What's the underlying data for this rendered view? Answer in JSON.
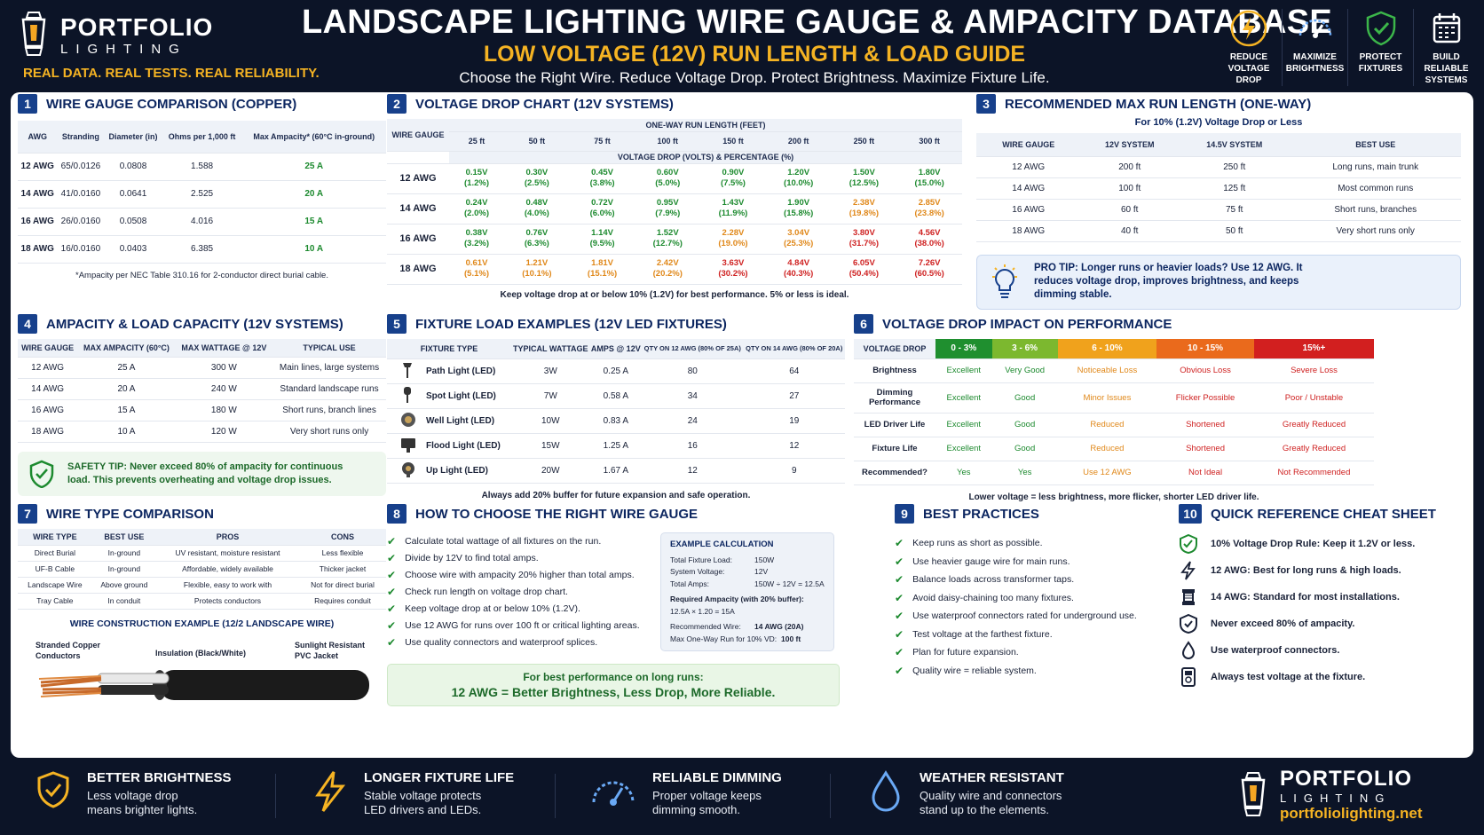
{
  "header": {
    "brand_name": "PORTFOLIO",
    "brand_sub": "LIGHTING",
    "tagline": "REAL DATA. REAL TESTS. REAL RELIABILITY.",
    "title": "LANDSCAPE LIGHTING WIRE GAUGE & AMPACITY DATABASE",
    "subtitle": "LOW VOLTAGE (12V) RUN LENGTH & LOAD GUIDE",
    "tagline2": "Choose the Right Wire. Reduce Voltage Drop. Protect Brightness. Maximize Fixture Life.",
    "icons": [
      {
        "icon": "lightning-icon",
        "l1": "REDUCE",
        "l2": "VOLTAGE DROP"
      },
      {
        "icon": "gauge-icon",
        "l1": "MAXIMIZE",
        "l2": "BRIGHTNESS"
      },
      {
        "icon": "shield-check-icon",
        "l1": "PROTECT",
        "l2": "FIXTURES"
      },
      {
        "icon": "calendar-icon",
        "l1": "BUILD RELIABLE",
        "l2": "SYSTEMS"
      }
    ]
  },
  "s1": {
    "num": "1",
    "title": "WIRE GAUGE COMPARISON (COPPER)",
    "headers": [
      "AWG",
      "Stranding",
      "Diameter (in)",
      "Ohms per 1,000 ft",
      "Max Ampacity* (60°C in-ground)"
    ],
    "rows": [
      [
        "12 AWG",
        "65/0.0126",
        "0.0808",
        "1.588",
        "25 A"
      ],
      [
        "14 AWG",
        "41/0.0160",
        "0.0641",
        "2.525",
        "20 A"
      ],
      [
        "16 AWG",
        "26/0.0160",
        "0.0508",
        "4.016",
        "15 A"
      ],
      [
        "18 AWG",
        "16/0.0160",
        "0.0403",
        "6.385",
        "10 A"
      ]
    ],
    "note": "*Ampacity per NEC Table 310.16 for 2-conductor direct burial cable."
  },
  "s2": {
    "num": "2",
    "title": "VOLTAGE DROP CHART (12V SYSTEMS)",
    "wire_gauge": "WIRE GAUGE",
    "run_label": "ONE-WAY RUN LENGTH (FEET)",
    "drop_label": "VOLTAGE DROP (VOLTS) & PERCENTAGE (%)",
    "lengths": [
      "25 ft",
      "50 ft",
      "75 ft",
      "100 ft",
      "150 ft",
      "200 ft",
      "250 ft",
      "300 ft"
    ],
    "rows": [
      {
        "g": "12 AWG",
        "cells": [
          [
            "0.15V",
            "(1.2%)",
            "g"
          ],
          [
            "0.30V",
            "(2.5%)",
            "g"
          ],
          [
            "0.45V",
            "(3.8%)",
            "g"
          ],
          [
            "0.60V",
            "(5.0%)",
            "g"
          ],
          [
            "0.90V",
            "(7.5%)",
            "g"
          ],
          [
            "1.20V",
            "(10.0%)",
            "g"
          ],
          [
            "1.50V",
            "(12.5%)",
            "g"
          ],
          [
            "1.80V",
            "(15.0%)",
            "g"
          ]
        ]
      },
      {
        "g": "14 AWG",
        "cells": [
          [
            "0.24V",
            "(2.0%)",
            "g"
          ],
          [
            "0.48V",
            "(4.0%)",
            "g"
          ],
          [
            "0.72V",
            "(6.0%)",
            "g"
          ],
          [
            "0.95V",
            "(7.9%)",
            "g"
          ],
          [
            "1.43V",
            "(11.9%)",
            "g"
          ],
          [
            "1.90V",
            "(15.8%)",
            "g"
          ],
          [
            "2.38V",
            "(19.8%)",
            "o"
          ],
          [
            "2.85V",
            "(23.8%)",
            "o"
          ]
        ]
      },
      {
        "g": "16 AWG",
        "cells": [
          [
            "0.38V",
            "(3.2%)",
            "g"
          ],
          [
            "0.76V",
            "(6.3%)",
            "g"
          ],
          [
            "1.14V",
            "(9.5%)",
            "g"
          ],
          [
            "1.52V",
            "(12.7%)",
            "g"
          ],
          [
            "2.28V",
            "(19.0%)",
            "o"
          ],
          [
            "3.04V",
            "(25.3%)",
            "o"
          ],
          [
            "3.80V",
            "(31.7%)",
            "r"
          ],
          [
            "4.56V",
            "(38.0%)",
            "r"
          ]
        ]
      },
      {
        "g": "18 AWG",
        "cells": [
          [
            "0.61V",
            "(5.1%)",
            "o"
          ],
          [
            "1.21V",
            "(10.1%)",
            "o"
          ],
          [
            "1.81V",
            "(15.1%)",
            "o"
          ],
          [
            "2.42V",
            "(20.2%)",
            "o"
          ],
          [
            "3.63V",
            "(30.2%)",
            "r"
          ],
          [
            "4.84V",
            "(40.3%)",
            "r"
          ],
          [
            "6.05V",
            "(50.4%)",
            "r"
          ],
          [
            "7.26V",
            "(60.5%)",
            "r"
          ]
        ]
      }
    ],
    "note": "Keep voltage drop at or below 10% (1.2V) for best performance. 5% or less is ideal."
  },
  "s3": {
    "num": "3",
    "title": "RECOMMENDED MAX RUN LENGTH (ONE-WAY)",
    "sub": "For 10% (1.2V) Voltage Drop or Less",
    "headers": [
      "WIRE GAUGE",
      "12V SYSTEM",
      "14.5V SYSTEM",
      "BEST USE"
    ],
    "rows": [
      [
        "12 AWG",
        "200 ft",
        "250 ft",
        "Long runs, main trunk"
      ],
      [
        "14 AWG",
        "100 ft",
        "125 ft",
        "Most common runs"
      ],
      [
        "16 AWG",
        "60 ft",
        "75 ft",
        "Short runs, branches"
      ],
      [
        "18 AWG",
        "40 ft",
        "50 ft",
        "Very short runs only"
      ]
    ],
    "tip": "PRO TIP: Longer runs or heavier loads? Use 12 AWG. It reduces voltage drop, improves brightness, and keeps dimming stable."
  },
  "s4": {
    "num": "4",
    "title": "AMPACITY & LOAD CAPACITY (12V SYSTEMS)",
    "headers": [
      "WIRE GAUGE",
      "MAX AMPACITY (60°C)",
      "MAX WATTAGE @ 12V",
      "TYPICAL USE"
    ],
    "rows": [
      [
        "12 AWG",
        "25 A",
        "300 W",
        "Main lines, large systems"
      ],
      [
        "14 AWG",
        "20 A",
        "240 W",
        "Standard landscape runs"
      ],
      [
        "16 AWG",
        "15 A",
        "180 W",
        "Short runs, branch lines"
      ],
      [
        "18 AWG",
        "10 A",
        "120 W",
        "Very short runs only"
      ]
    ],
    "tip": "SAFETY TIP: Never exceed 80% of ampacity for continuous load. This prevents overheating and voltage drop issues."
  },
  "s5": {
    "num": "5",
    "title": "FIXTURE LOAD EXAMPLES (12V LED FIXTURES)",
    "headers": [
      "FIXTURE TYPE",
      "TYPICAL WATTAGE",
      "AMPS @ 12V",
      "QTY ON 12 AWG (80% OF 25A)",
      "QTY ON 14 AWG (80% OF 20A)"
    ],
    "rows": [
      [
        "Path Light (LED)",
        "3W",
        "0.25 A",
        "80",
        "64"
      ],
      [
        "Spot Light (LED)",
        "7W",
        "0.58 A",
        "34",
        "27"
      ],
      [
        "Well Light (LED)",
        "10W",
        "0.83 A",
        "24",
        "19"
      ],
      [
        "Flood Light (LED)",
        "15W",
        "1.25 A",
        "16",
        "12"
      ],
      [
        "Up Light (LED)",
        "20W",
        "1.67 A",
        "12",
        "9"
      ]
    ],
    "row_icons": [
      "path-light-icon",
      "spot-light-icon",
      "well-light-icon",
      "flood-light-icon",
      "up-light-icon"
    ],
    "note": "Always add 20% buffer for future expansion and safe operation."
  },
  "s6": {
    "num": "6",
    "title": "VOLTAGE DROP IMPACT ON PERFORMANCE",
    "headers": [
      "VOLTAGE DROP",
      "0 - 3%",
      "3 - 6%",
      "6 - 10%",
      "10 - 15%",
      "15%+"
    ],
    "header_colors": [
      "#1f8f2f",
      "#7cb82f",
      "#f0a21c",
      "#ea6a1c",
      "#d21f1f"
    ],
    "rows": [
      [
        "Brightness",
        "Excellent",
        "Very Good",
        "Noticeable Loss",
        "Obvious Loss",
        "Severe Loss"
      ],
      [
        "Dimming Performance",
        "Excellent",
        "Good",
        "Minor Issues",
        "Flicker Possible",
        "Poor / Unstable"
      ],
      [
        "LED Driver Life",
        "Excellent",
        "Good",
        "Reduced",
        "Shortened",
        "Greatly Reduced"
      ],
      [
        "Fixture Life",
        "Excellent",
        "Good",
        "Reduced",
        "Shortened",
        "Greatly Reduced"
      ],
      [
        "Recommended?",
        "Yes",
        "Yes",
        "Use 12 AWG",
        "Not Ideal",
        "Not Recommended"
      ]
    ],
    "note": "Lower voltage = less brightness, more flicker, shorter LED driver life."
  },
  "s7": {
    "num": "7",
    "title": "WIRE TYPE COMPARISON",
    "headers": [
      "WIRE TYPE",
      "BEST USE",
      "PROS",
      "CONS"
    ],
    "rows": [
      [
        "Direct Burial",
        "In-ground",
        "UV resistant, moisture resistant",
        "Less flexible"
      ],
      [
        "UF-B Cable",
        "In-ground",
        "Affordable, widely available",
        "Thicker jacket"
      ],
      [
        "Landscape Wire",
        "Above ground",
        "Flexible, easy to work with",
        "Not for direct burial"
      ],
      [
        "Tray Cable",
        "In conduit",
        "Protects conductors",
        "Requires conduit"
      ]
    ],
    "example_title": "WIRE CONSTRUCTION EXAMPLE (12/2 LANDSCAPE WIRE)",
    "label_copper": "Stranded Copper Conductors",
    "label_insulation": "Insulation (Black/White)",
    "label_jacket": "Sunlight Resistant PVC Jacket"
  },
  "s8": {
    "num": "8",
    "title": "HOW TO CHOOSE THE RIGHT WIRE GAUGE",
    "steps": [
      "Calculate total wattage of all fixtures on the run.",
      "Divide by 12V to find total amps.",
      "Choose wire with ampacity 20% higher than total amps.",
      "Check run length on voltage drop chart.",
      "Keep voltage drop at or below 10% (1.2V).",
      "Use 12 AWG for runs over 100 ft or critical lighting areas.",
      "Use quality connectors and waterproof splices."
    ],
    "calc_title": "EXAMPLE CALCULATION",
    "calc": [
      [
        "Total Fixture Load:",
        "150W"
      ],
      [
        "System Voltage:",
        "12V"
      ],
      [
        "Total Amps:",
        "150W ÷ 12V = 12.5A"
      ]
    ],
    "calc_req_label": "Required Ampacity (with 20% buffer):",
    "calc_req_value": "12.5A × 1.20 = 15A",
    "calc_rec": [
      [
        "Recommended Wire:",
        "14 AWG (20A)"
      ],
      [
        "Max One-Way Run for 10% VD:",
        "100 ft"
      ]
    ],
    "banner1": "For best performance on long runs:",
    "banner2": "12 AWG = Better Brightness, Less Drop, More Reliable."
  },
  "s9": {
    "num": "9",
    "title": "BEST PRACTICES",
    "items": [
      "Keep runs as short as possible.",
      "Use heavier gauge wire for main runs.",
      "Balance loads across transformer taps.",
      "Avoid daisy-chaining too many fixtures.",
      "Use waterproof connectors rated for underground use.",
      "Test voltage at the farthest fixture.",
      "Plan for future expansion.",
      "Quality wire = reliable system."
    ]
  },
  "s10": {
    "num": "10",
    "title": "QUICK REFERENCE CHEAT SHEET",
    "items": [
      {
        "icon": "shield-check-icon",
        "text": "10% Voltage Drop Rule: Keep it 1.2V or less."
      },
      {
        "icon": "lightning-icon",
        "text": "12 AWG: Best for long runs & high loads."
      },
      {
        "icon": "wire-spool-icon",
        "text": "14 AWG: Standard for most installations."
      },
      {
        "icon": "shield-icon",
        "text": "Never exceed 80% of ampacity."
      },
      {
        "icon": "water-drop-icon",
        "text": "Use waterproof connectors."
      },
      {
        "icon": "multimeter-icon",
        "text": "Always test voltage at the fixture."
      }
    ]
  },
  "footer": {
    "items": [
      {
        "icon": "shield-check-icon",
        "title": "BETTER BRIGHTNESS",
        "d1": "Less voltage drop",
        "d2": "means brighter lights."
      },
      {
        "icon": "lightning-icon",
        "title": "LONGER FIXTURE LIFE",
        "d1": "Stable voltage protects",
        "d2": "LED drivers and LEDs."
      },
      {
        "icon": "gauge-icon",
        "title": "RELIABLE DIMMING",
        "d1": "Proper voltage keeps",
        "d2": "dimming smooth."
      },
      {
        "icon": "water-drop-icon",
        "title": "WEATHER RESISTANT",
        "d1": "Quality wire and connectors",
        "d2": "stand up to the elements."
      }
    ],
    "brand_name": "PORTFOLIO",
    "brand_sub": "LIGHTING",
    "url": "portfoliolighting.net"
  },
  "colors": {
    "navy": "#0c1427",
    "gold": "#f5b323",
    "blue": "#17408b",
    "green": "#1d8a2f",
    "orange": "#e0881a",
    "red": "#cf2222"
  }
}
